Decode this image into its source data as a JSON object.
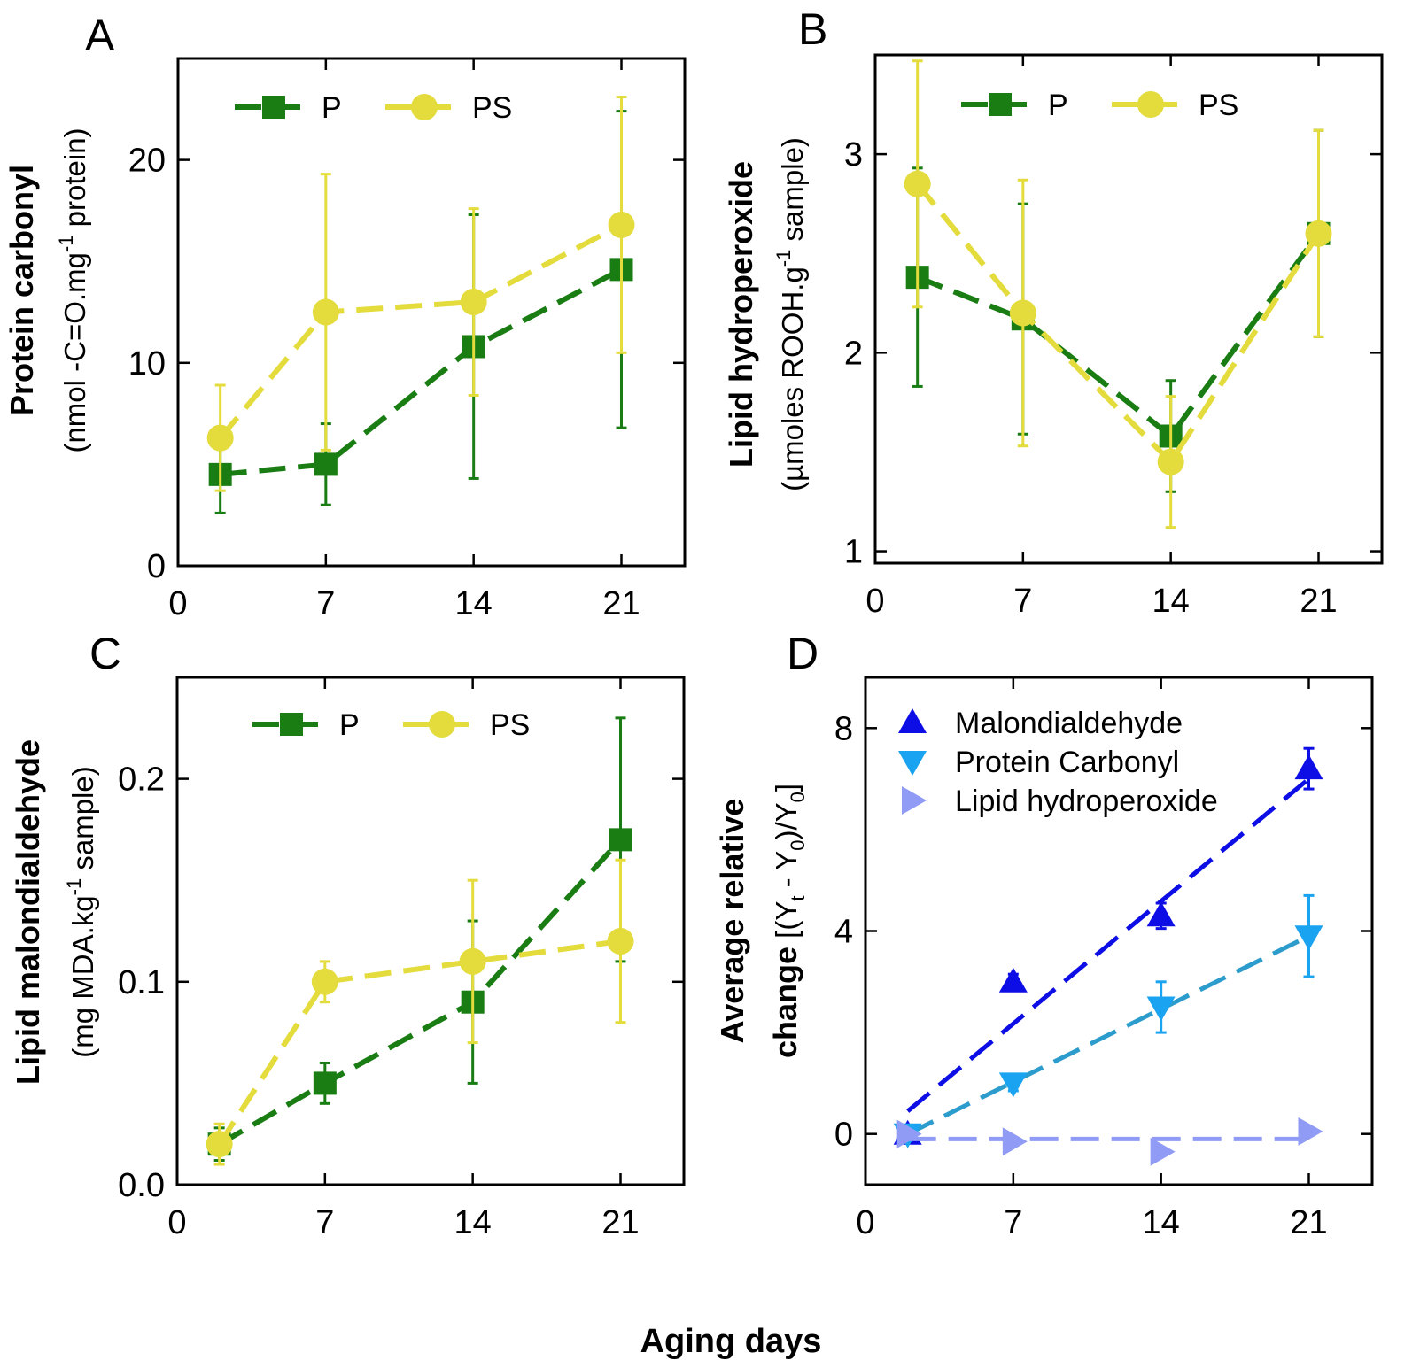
{
  "figure": {
    "x_common_label": "Aging days",
    "colors": {
      "P": "#1a7d14",
      "PS": "#e3dc3c",
      "malondialdehyde": "#0d0ee5",
      "protein_carbonyl": "#1aa3f0",
      "lipid_hydroperoxide": "#8f9bf5",
      "trend_protein": "#2c9ccc"
    }
  },
  "chart_data": [
    {
      "id": "A",
      "type": "line",
      "panel_label": "A",
      "ylabel_bold": "Protein carbonyl",
      "ylabel_units": {
        "main": "(nmol -C=O.mg",
        "sup": "-1",
        "tail": " protein)"
      },
      "xlim": [
        0,
        24
      ],
      "ylim": [
        0,
        25
      ],
      "xticks": [
        0,
        7,
        14,
        21
      ],
      "xtick_labels": [
        "0",
        "7",
        "14",
        "21"
      ],
      "yticks": [
        0,
        10,
        20
      ],
      "ytick_labels": [
        "0",
        "10",
        "20"
      ],
      "legend": {
        "position": "top-left",
        "entries": [
          "P",
          "PS"
        ]
      },
      "series": [
        {
          "name": "P",
          "marker": "square",
          "x": [
            2,
            7,
            14,
            21
          ],
          "y": [
            4.5,
            5.0,
            10.8,
            14.6
          ],
          "err": [
            1.9,
            2.0,
            6.5,
            7.8
          ]
        },
        {
          "name": "PS",
          "marker": "circle",
          "x": [
            2,
            7,
            14,
            21
          ],
          "y": [
            6.3,
            12.5,
            13.0,
            16.8
          ],
          "err": [
            2.6,
            6.8,
            4.6,
            6.3
          ]
        }
      ]
    },
    {
      "id": "B",
      "type": "line",
      "panel_label": "B",
      "ylabel_bold": "Lipid hydroperoxide",
      "ylabel_units": {
        "main": "(µmoles ROOH.g",
        "sup": "-1",
        "tail": " sample)"
      },
      "xlim": [
        0,
        24
      ],
      "ylim": [
        0.94,
        3.5
      ],
      "xticks": [
        0,
        7,
        14,
        21
      ],
      "xtick_labels": [
        "0",
        "7",
        "14",
        "21"
      ],
      "yticks": [
        1,
        2,
        3
      ],
      "ytick_labels": [
        "1",
        "2",
        "3"
      ],
      "legend": {
        "position": "top-left",
        "entries": [
          "P",
          "PS"
        ]
      },
      "series": [
        {
          "name": "P",
          "marker": "square",
          "x": [
            2,
            7,
            14,
            21
          ],
          "y": [
            2.38,
            2.17,
            1.58,
            2.6
          ],
          "err": [
            0.55,
            0.58,
            0.28,
            0.52
          ]
        },
        {
          "name": "PS",
          "marker": "circle",
          "x": [
            2,
            7,
            14,
            21
          ],
          "y": [
            2.85,
            2.2,
            1.45,
            2.6
          ],
          "err": [
            0.62,
            0.67,
            0.33,
            0.52
          ]
        }
      ]
    },
    {
      "id": "C",
      "type": "line",
      "panel_label": "C",
      "ylabel_bold": "Lipid malondialdehyde",
      "ylabel_units": {
        "main": "(mg MDA.kg",
        "sup": "-1",
        "tail": " sample)"
      },
      "xlim": [
        0,
        24
      ],
      "ylim": [
        0,
        0.25
      ],
      "xticks": [
        0,
        7,
        14,
        21
      ],
      "xtick_labels": [
        "0",
        "7",
        "14",
        "21"
      ],
      "yticks": [
        0,
        0.1,
        0.2
      ],
      "ytick_labels": [
        "0.0",
        "0.1",
        "0.2"
      ],
      "legend": {
        "position": "top-left",
        "entries": [
          "P",
          "PS"
        ]
      },
      "series": [
        {
          "name": "P",
          "marker": "square",
          "x": [
            2,
            7,
            14,
            21
          ],
          "y": [
            0.02,
            0.05,
            0.09,
            0.17
          ],
          "err": [
            0.008,
            0.01,
            0.04,
            0.06
          ]
        },
        {
          "name": "PS",
          "marker": "circle",
          "x": [
            2,
            7,
            14,
            21
          ],
          "y": [
            0.02,
            0.1,
            0.11,
            0.12
          ],
          "err": [
            0.01,
            0.01,
            0.04,
            0.04
          ]
        }
      ]
    },
    {
      "id": "D",
      "type": "scatter",
      "panel_label": "D",
      "ylabel_bold_1": "Average relative",
      "ylabel_bold_2": "change",
      "ylabel_formula": {
        "p1": "[(Y",
        "s1": "t",
        "p2": " - Y",
        "s2": "0",
        "p3": ")/Y",
        "s3": "0",
        "p4": "]"
      },
      "xlim": [
        0,
        24
      ],
      "ylim": [
        -1,
        9
      ],
      "xticks": [
        0,
        7,
        14,
        21
      ],
      "xtick_labels": [
        "0",
        "7",
        "14",
        "21"
      ],
      "yticks": [
        0,
        4,
        8
      ],
      "ytick_labels": [
        "0",
        "4",
        "8"
      ],
      "legend": {
        "position": "top-left",
        "entries": [
          "Malondialdehyde",
          "Protein Carbonyl",
          "Lipid hydroperoxide"
        ]
      },
      "series": [
        {
          "name": "Malondialdehyde",
          "marker": "triangle-up",
          "x": [
            2,
            7,
            14,
            21
          ],
          "y": [
            0.0,
            3.0,
            4.3,
            7.2
          ],
          "err": [
            0.0,
            0.15,
            0.25,
            0.4
          ],
          "trend": [
            [
              2,
              0.45
            ],
            [
              21,
              7.0
            ]
          ]
        },
        {
          "name": "Protein Carbonyl",
          "marker": "triangle-down",
          "x": [
            2,
            7,
            14,
            21
          ],
          "y": [
            0.0,
            1.0,
            2.5,
            3.9
          ],
          "err": [
            0.0,
            0.15,
            0.5,
            0.8
          ],
          "trend": [
            [
              2,
              0.0
            ],
            [
              21,
              3.9
            ]
          ]
        },
        {
          "name": "Lipid hydroperoxide",
          "marker": "triangle-right",
          "x": [
            2,
            7,
            14,
            21
          ],
          "y": [
            0.0,
            -0.15,
            -0.35,
            0.05
          ],
          "err": [
            0,
            0,
            0,
            0
          ],
          "trend": [
            [
              2,
              -0.1
            ],
            [
              21,
              -0.1
            ]
          ]
        }
      ]
    }
  ]
}
